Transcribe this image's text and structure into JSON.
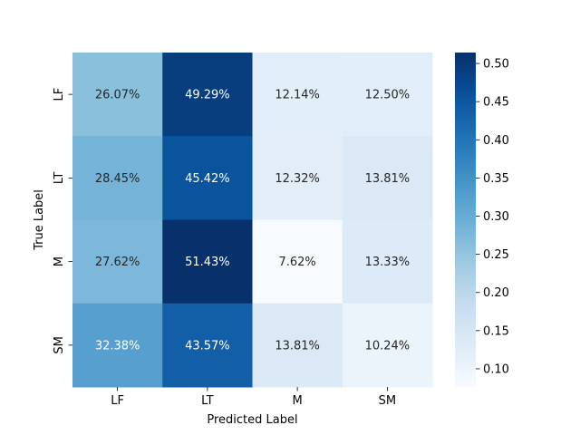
{
  "chart_data": {
    "type": "heatmap",
    "title": "",
    "xlabel": "Predicted Label",
    "ylabel": "True Label",
    "x_categories": [
      "LF",
      "LT",
      "M",
      "SM"
    ],
    "y_categories": [
      "LF",
      "LT",
      "M",
      "SM"
    ],
    "values": [
      [
        0.2607,
        0.4929,
        0.1214,
        0.125
      ],
      [
        0.2845,
        0.4542,
        0.1232,
        0.1381
      ],
      [
        0.2762,
        0.5143,
        0.0762,
        0.1333
      ],
      [
        0.3238,
        0.4357,
        0.1381,
        0.1024
      ]
    ],
    "cell_labels": [
      [
        "26.07%",
        "49.29%",
        "12.14%",
        "12.50%"
      ],
      [
        "28.45%",
        "45.42%",
        "12.32%",
        "13.81%"
      ],
      [
        "27.62%",
        "51.43%",
        "7.62%",
        "13.33%"
      ],
      [
        "32.38%",
        "43.57%",
        "13.81%",
        "10.24%"
      ]
    ],
    "colormap": "Blues",
    "colorbar": {
      "range": [
        0.0762,
        0.5143
      ],
      "ticks": [
        0.1,
        0.15,
        0.2,
        0.25,
        0.3,
        0.35,
        0.4,
        0.45,
        0.5
      ],
      "tick_labels": [
        "0.10",
        "0.15",
        "0.20",
        "0.25",
        "0.30",
        "0.35",
        "0.40",
        "0.45",
        "0.50"
      ]
    },
    "colors": {
      "low": "#f7fbff",
      "high": "#08306b",
      "text_dark": "#262626",
      "text_light": "#ffffff"
    }
  }
}
